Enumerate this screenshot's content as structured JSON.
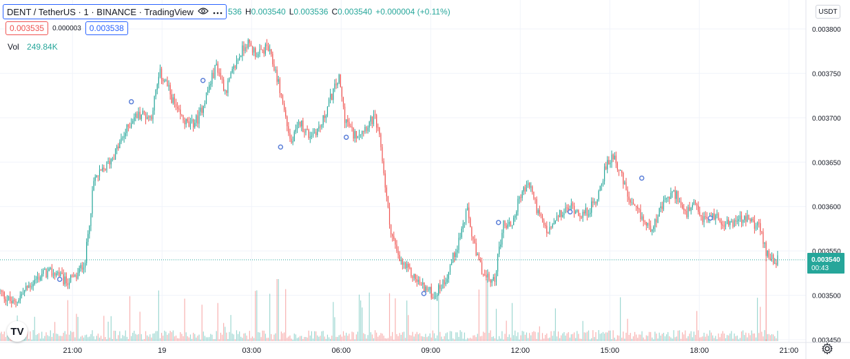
{
  "header": {
    "symbol_title": "DENT / TetherUS · 1 · BINANCE · TradingView",
    "ohlc_open_partial": "536",
    "ohlc_high_label": "H",
    "ohlc_high": "0.003540",
    "ohlc_low_label": "L",
    "ohlc_low": "0.003536",
    "ohlc_close_label": "C",
    "ohlc_close": "0.003540",
    "change": "+0.000004 (+0.11%)",
    "bid": "0.003535",
    "spread": "0.000003",
    "ask": "0.003538",
    "volume_label": "Vol",
    "volume_value": "249.84K",
    "currency": "USDT",
    "logo_text": "TV"
  },
  "icons": {
    "eye": "eye-icon",
    "more": "more-icon",
    "settings": "gear-icon",
    "logo": "tradingview-logo"
  },
  "colors": {
    "up": "#26a69a",
    "down": "#ef5350",
    "accent": "#2962ff",
    "grid": "#f0f3fa",
    "axis_text": "#131722",
    "marker": "#5b7fd8"
  },
  "chart_data": {
    "type": "candlestick",
    "ylim": [
      0.00345,
      0.003815
    ],
    "y_ticks": [
      "0.003800",
      "0.003750",
      "0.003700",
      "0.003650",
      "0.003600",
      "0.003550",
      "0.003500",
      "0.003450"
    ],
    "y_tick_values": [
      0.0038,
      0.00375,
      0.0037,
      0.00365,
      0.0036,
      0.00355,
      0.0035,
      0.00345
    ],
    "x_ticks": [
      "21:00",
      "19",
      "03:00",
      "06:00",
      "09:00",
      "12:00",
      "15:00",
      "18:00",
      "21:00"
    ],
    "x_tick_hours": [
      2.43,
      5.43,
      8.43,
      11.43,
      14.43,
      17.43,
      20.43,
      23.43,
      26.43
    ],
    "x_range_hours": [
      0,
      27.0
    ],
    "last_price": 0.00354,
    "last_price_label": "0.003540",
    "countdown": "00:43",
    "price_path": [
      [
        0,
        0.003505
      ],
      [
        0.5,
        0.00349
      ],
      [
        1.0,
        0.00351
      ],
      [
        1.5,
        0.003525
      ],
      [
        2.0,
        0.003525
      ],
      [
        2.2,
        0.003515
      ],
      [
        2.6,
        0.00352
      ],
      [
        2.9,
        0.00354
      ],
      [
        3.2,
        0.00363
      ],
      [
        3.5,
        0.00364
      ],
      [
        3.9,
        0.00366
      ],
      [
        4.2,
        0.00368
      ],
      [
        4.5,
        0.0037
      ],
      [
        4.8,
        0.003705
      ],
      [
        5.1,
        0.0037
      ],
      [
        5.4,
        0.00375
      ],
      [
        5.6,
        0.00374
      ],
      [
        6.0,
        0.003705
      ],
      [
        6.4,
        0.00369
      ],
      [
        6.7,
        0.0037
      ],
      [
        7.0,
        0.00373
      ],
      [
        7.3,
        0.00376
      ],
      [
        7.6,
        0.00373
      ],
      [
        8.0,
        0.003765
      ],
      [
        8.3,
        0.003785
      ],
      [
        8.7,
        0.00377
      ],
      [
        9.0,
        0.00378
      ],
      [
        9.3,
        0.00375
      ],
      [
        9.5,
        0.00372
      ],
      [
        9.8,
        0.00367
      ],
      [
        10.1,
        0.003695
      ],
      [
        10.4,
        0.00368
      ],
      [
        10.8,
        0.00369
      ],
      [
        11.1,
        0.00372
      ],
      [
        11.4,
        0.003745
      ],
      [
        11.6,
        0.0037
      ],
      [
        11.9,
        0.00368
      ],
      [
        12.3,
        0.00369
      ],
      [
        12.6,
        0.0037
      ],
      [
        12.8,
        0.00367
      ],
      [
        13.1,
        0.00358
      ],
      [
        13.4,
        0.00354
      ],
      [
        13.8,
        0.003525
      ],
      [
        14.2,
        0.00351
      ],
      [
        14.6,
        0.0035
      ],
      [
        15.0,
        0.00352
      ],
      [
        15.4,
        0.00356
      ],
      [
        15.7,
        0.003595
      ],
      [
        16.0,
        0.003545
      ],
      [
        16.3,
        0.00352
      ],
      [
        16.6,
        0.003515
      ],
      [
        16.9,
        0.00358
      ],
      [
        17.2,
        0.00358
      ],
      [
        17.5,
        0.003615
      ],
      [
        17.8,
        0.003625
      ],
      [
        18.1,
        0.00359
      ],
      [
        18.4,
        0.00357
      ],
      [
        18.8,
        0.00359
      ],
      [
        19.2,
        0.0036
      ],
      [
        19.6,
        0.00359
      ],
      [
        20.0,
        0.003605
      ],
      [
        20.3,
        0.00364
      ],
      [
        20.6,
        0.00366
      ],
      [
        20.9,
        0.00363
      ],
      [
        21.2,
        0.0036
      ],
      [
        21.5,
        0.00359
      ],
      [
        21.8,
        0.003575
      ],
      [
        22.1,
        0.00359
      ],
      [
        22.4,
        0.00361
      ],
      [
        22.7,
        0.003615
      ],
      [
        23.0,
        0.00359
      ],
      [
        23.3,
        0.0036
      ],
      [
        23.6,
        0.003585
      ],
      [
        24.0,
        0.00359
      ],
      [
        24.4,
        0.00358
      ],
      [
        24.8,
        0.003585
      ],
      [
        25.2,
        0.003585
      ],
      [
        25.5,
        0.003575
      ],
      [
        25.7,
        0.00355
      ],
      [
        26.0,
        0.00354
      ]
    ],
    "markers_hours": [
      2.0,
      4.4,
      6.8,
      9.4,
      11.6,
      14.2,
      16.7,
      19.1,
      21.5,
      23.8
    ],
    "marker_values": [
      0.003518,
      0.003718,
      0.003742,
      0.003667,
      0.003678,
      0.003502,
      0.003582,
      0.003594,
      0.003632,
      0.003587
    ]
  }
}
